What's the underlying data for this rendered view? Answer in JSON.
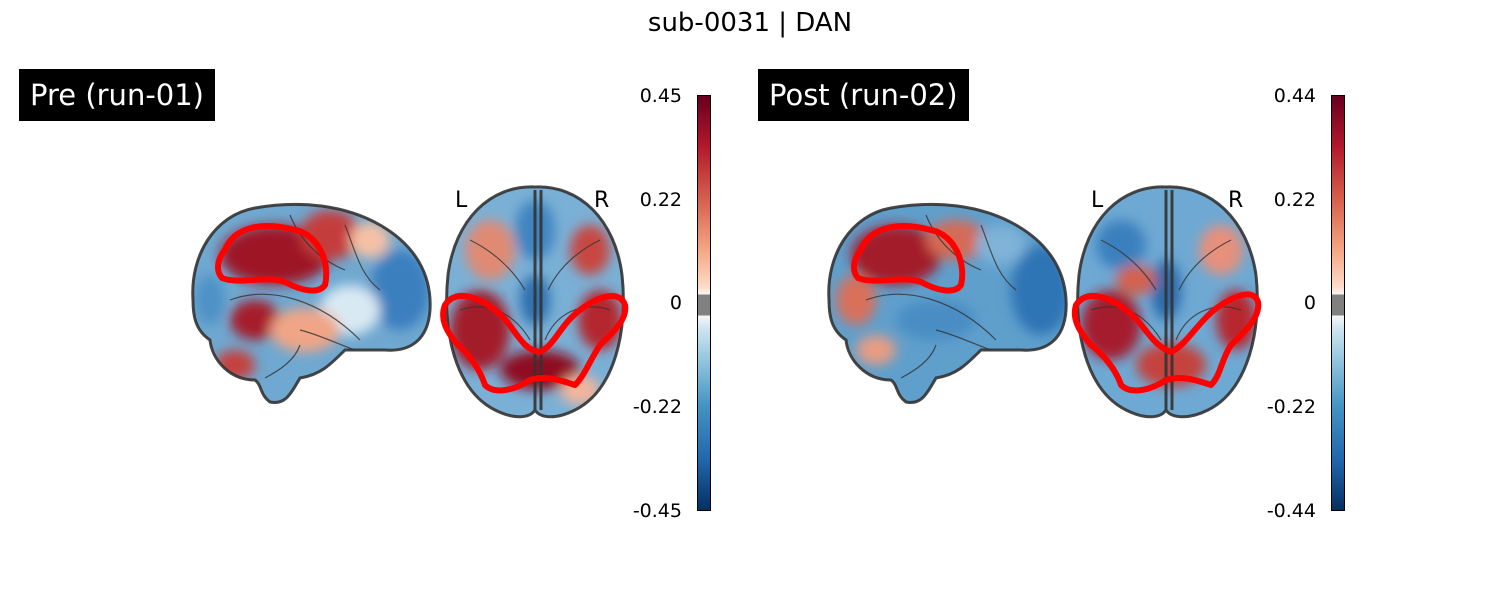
{
  "title": "sub-0031 | DAN",
  "panels": [
    {
      "label": "Pre (run-01)",
      "left_marker": "L",
      "right_marker": "R",
      "colorbar": {
        "ticks": [
          "0.45",
          "0.22",
          "0",
          "-0.22",
          "-0.45"
        ],
        "vmin": -0.45,
        "vmax": 0.45
      }
    },
    {
      "label": "Post (run-02)",
      "left_marker": "L",
      "right_marker": "R",
      "colorbar": {
        "ticks": [
          "0.44",
          "0.22",
          "0",
          "-0.22",
          "-0.44"
        ],
        "vmin": -0.44,
        "vmax": 0.44
      }
    }
  ],
  "colors": {
    "positive": "#b2182b",
    "negative": "#2166ac",
    "roi_outline": "#ff0000",
    "brain_outline": "#333333"
  }
}
